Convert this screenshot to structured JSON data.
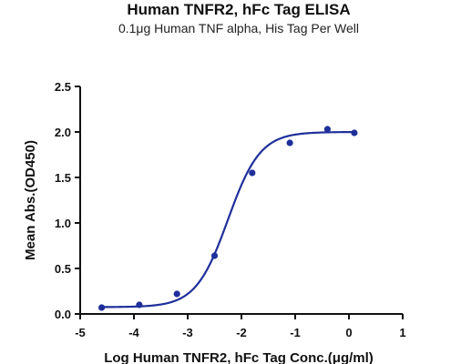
{
  "chart_data": {
    "type": "scatter",
    "title": "Human TNFR2, hFc Tag ELISA",
    "subtitle": "0.1μg Human TNF alpha, His Tag Per Well",
    "xlabel": "Log Human TNFR2, hFc Tag Conc.(μg/ml)",
    "ylabel": "Mean Abs.(OD450)",
    "xlim": [
      -5,
      1
    ],
    "ylim": [
      0,
      2.5
    ],
    "x_ticks": [
      -5,
      -4,
      -3,
      -2,
      -1,
      0,
      1
    ],
    "y_ticks": [
      0.0,
      0.5,
      1.0,
      1.5,
      2.0,
      2.5
    ],
    "x_tick_labels": [
      "-5",
      "-4",
      "-3",
      "-2",
      "-1",
      "0",
      "1"
    ],
    "y_tick_labels": [
      "0.0",
      "0.5",
      "1.0",
      "1.5",
      "2.0",
      "2.5"
    ],
    "grid": false,
    "legend": "none",
    "color": "#1f2f9a",
    "series": [
      {
        "x": [
          -4.6,
          -3.9,
          -3.2,
          -2.5,
          -1.8,
          -1.1,
          -0.4,
          0.1
        ],
        "y": [
          0.07,
          0.1,
          0.22,
          0.64,
          1.55,
          1.88,
          2.03,
          1.99
        ]
      }
    ],
    "fit_curve": {
      "model": "4PL",
      "bottom": 0.075,
      "top": 2.0,
      "log_ec50": -2.25,
      "hill_slope": 1.45,
      "x_range": [
        -4.6,
        0.1
      ]
    }
  }
}
